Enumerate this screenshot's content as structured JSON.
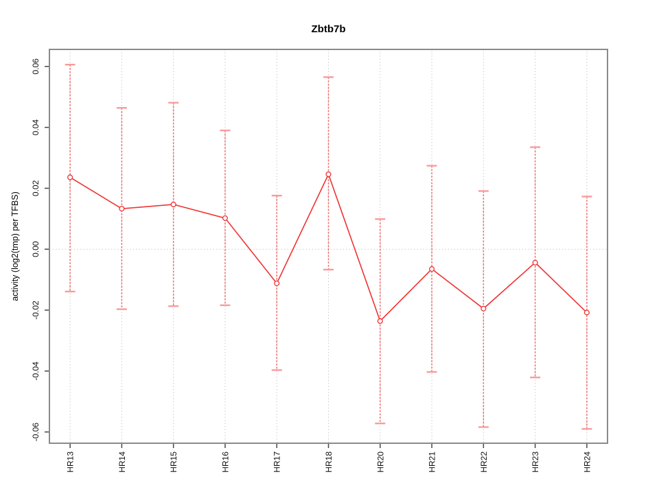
{
  "chart_data": {
    "type": "line",
    "title": "Zbtb7b",
    "xlabel": "",
    "ylabel": "activity (log2(tmp) per TFBS)",
    "categories": [
      "HR13",
      "HR14",
      "HR15",
      "HR16",
      "HR17",
      "HR18",
      "HR20",
      "HR21",
      "HR22",
      "HR23",
      "HR24"
    ],
    "series": [
      {
        "name": "activity",
        "values": [
          0.0236,
          0.0133,
          0.0147,
          0.0102,
          -0.0112,
          0.0246,
          -0.0236,
          -0.0065,
          -0.0195,
          -0.0044,
          -0.0208
        ],
        "upper": [
          0.0606,
          0.0464,
          0.0481,
          0.039,
          0.0176,
          0.0565,
          0.0099,
          0.0274,
          0.0191,
          0.0335,
          0.0173
        ],
        "lower": [
          -0.0139,
          -0.0197,
          -0.0187,
          -0.0184,
          -0.0397,
          -0.0067,
          -0.0572,
          -0.0403,
          -0.0584,
          -0.0421,
          -0.059
        ]
      }
    ],
    "yticks": [
      -0.06,
      -0.04,
      -0.02,
      0,
      0.02,
      0.04,
      0.06
    ],
    "ytick_labels": [
      "-0.06",
      "-0.04",
      "-0.02",
      "0.00",
      "0.02",
      "0.04",
      "0.06"
    ],
    "ylim": [
      -0.0637,
      0.0656
    ],
    "marker": "open-circle",
    "legend": "none",
    "grid": {
      "vertical_at_categories": true,
      "horizontal_at": [
        0
      ],
      "style": "dotted"
    },
    "colors": {
      "line": "#ee3333",
      "marker_stroke": "#ee3333",
      "marker_fill": "#ffffff",
      "errorbar_stem": "#ef6f6f",
      "errorbar_cap": "#f79c9c",
      "grid": "#c9c9c9",
      "box": "#8a8a8a",
      "tick": "#454545",
      "text": "#000000",
      "background": "#ffffff"
    }
  }
}
